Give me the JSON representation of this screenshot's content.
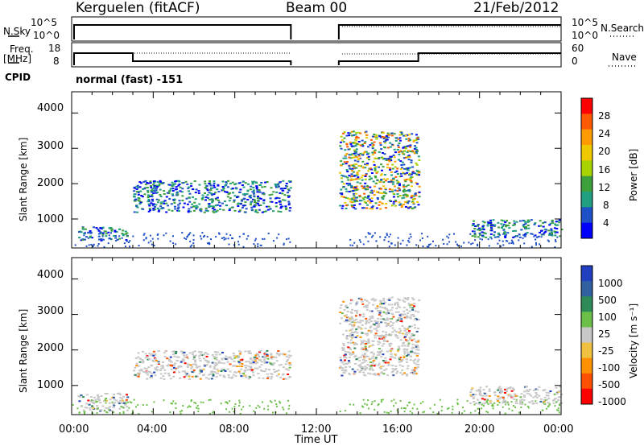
{
  "header": {
    "station": "Kerguelen (fitACF)",
    "beam": "Beam 00",
    "date": "21/Feb/2012"
  },
  "top_panels": {
    "nsky_label": "N.Sky",
    "nsky_ticks": [
      "10^5",
      "10^0"
    ],
    "nsearch_label": "N.Search",
    "nsearch_ticks": [
      "10^5",
      "10^0"
    ],
    "freq_label_1": "Freq.",
    "freq_label_2": "[MHz]",
    "freq_ticks": [
      "18",
      "8"
    ],
    "nave_label": "Nave",
    "nave_ticks": [
      "60",
      "0"
    ],
    "cpid_label": "CPID",
    "cpid_value": "normal (fast) -151"
  },
  "colorbars": {
    "power": {
      "label": "Power [dB]",
      "ticks": [
        "28",
        "24",
        "20",
        "16",
        "12",
        "8",
        "4"
      ],
      "colors": [
        "#ff0000",
        "#ff5a00",
        "#ff9a00",
        "#f0c800",
        "#a8d200",
        "#3ca03c",
        "#20a080",
        "#1e50c8",
        "#0000ff"
      ]
    },
    "velocity": {
      "label": "Velocity [m s⁻¹]",
      "ticks": [
        "1000",
        "500",
        "100",
        "25",
        "-25",
        "-100",
        "-500",
        "-1000"
      ],
      "colors": [
        "#2040c0",
        "#3060a0",
        "#2e8b57",
        "#6cc04a",
        "#c8c8c8",
        "#f0c040",
        "#ff9000",
        "#ff5000",
        "#ff0000"
      ]
    }
  },
  "chart_data": [
    {
      "type": "heatmap",
      "title": "",
      "ylabel": "Slant Range [km]",
      "xlabel": "",
      "quantity": "Power [dB]",
      "ylim": [
        180,
        4600
      ],
      "yticks": [
        "4000",
        "3000",
        "2000",
        "1000"
      ],
      "xlim_hours": [
        0,
        24
      ],
      "data_gap_hours": [
        10.75,
        13.1
      ],
      "echo_regions": [
        {
          "t_start": 0.3,
          "t_end": 2.7,
          "range_km": [
            400,
            800
          ],
          "power_db": 16
        },
        {
          "t_start": 3.0,
          "t_end": 10.7,
          "range_km": [
            1200,
            2100
          ],
          "power_db": 8
        },
        {
          "t_start": 13.1,
          "t_end": 17.0,
          "range_km": [
            1300,
            3500
          ],
          "power_db": 22
        },
        {
          "t_start": 19.5,
          "t_end": 24.0,
          "range_km": [
            500,
            1000
          ],
          "power_db": 10
        }
      ]
    },
    {
      "type": "heatmap",
      "title": "",
      "ylabel": "Slant Range [km]",
      "xlabel": "Time UT",
      "quantity": "Velocity [m s⁻¹]",
      "ylim": [
        180,
        4600
      ],
      "yticks": [
        "4000",
        "3000",
        "2000",
        "1000"
      ],
      "xticks": [
        "00:00",
        "04:00",
        "08:00",
        "12:00",
        "16:00",
        "20:00",
        "00:00"
      ],
      "xlim_hours": [
        0,
        24
      ],
      "data_gap_hours": [
        10.75,
        13.1
      ],
      "echo_regions": [
        {
          "t_start": 0.3,
          "t_end": 2.7,
          "range_km": [
            300,
            800
          ],
          "velocity_ms": 0
        },
        {
          "t_start": 3.0,
          "t_end": 10.7,
          "range_km": [
            1200,
            2000
          ],
          "velocity_ms": 0
        },
        {
          "t_start": 13.1,
          "t_end": 17.0,
          "range_km": [
            1300,
            3500
          ],
          "velocity_ms": 0
        },
        {
          "t_start": 19.5,
          "t_end": 24.0,
          "range_km": [
            500,
            1000
          ],
          "velocity_ms": -30
        }
      ]
    }
  ]
}
